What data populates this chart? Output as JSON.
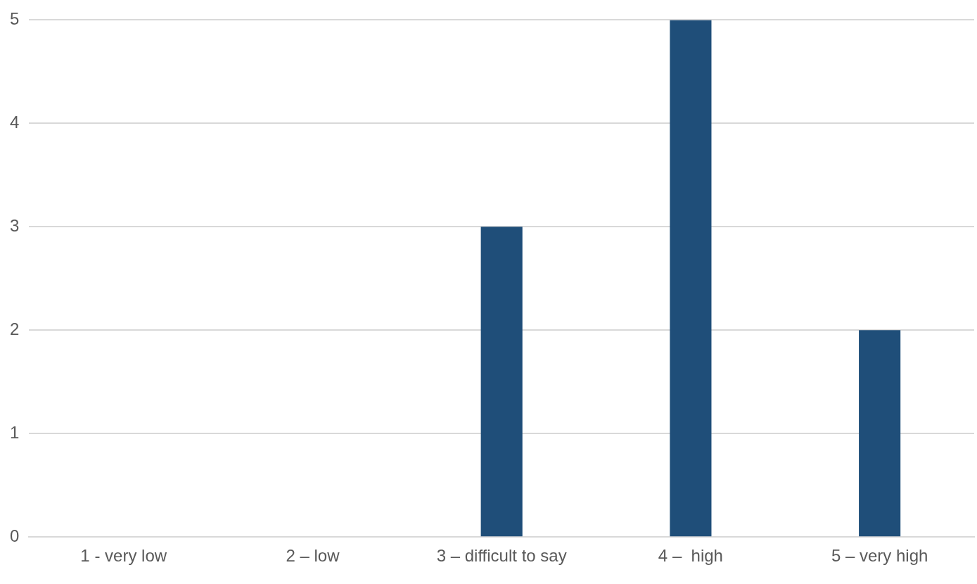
{
  "chart_data": {
    "type": "bar",
    "categories": [
      "1 - very low",
      "2 – low",
      "3 – difficult to say",
      "4 –  high",
      "5 – very high"
    ],
    "values": [
      0,
      0,
      3,
      5,
      2
    ],
    "color": "#1f4e79",
    "ylim": [
      0,
      5
    ],
    "yticks": [
      0,
      1,
      2,
      3,
      4,
      5
    ],
    "grid": "y"
  }
}
